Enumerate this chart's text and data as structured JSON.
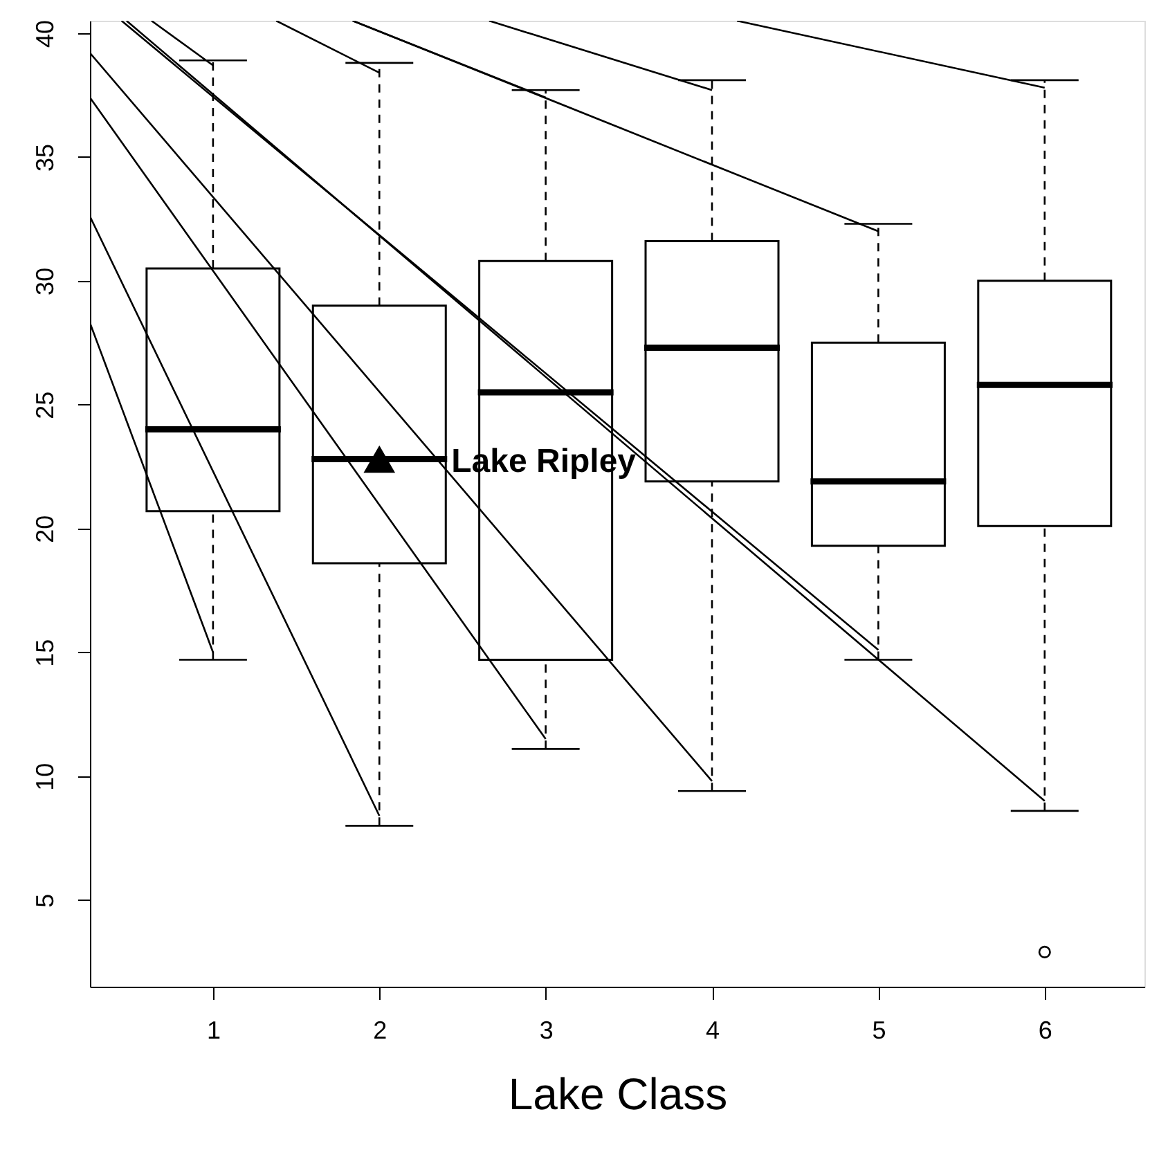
{
  "chart_data": {
    "type": "box",
    "xlabel": "Lake Class",
    "xlim": [
      0.26,
      6.6
    ],
    "xticks": [
      1,
      2,
      3,
      4,
      5,
      6
    ],
    "ylim": [
      1.5,
      40.5
    ],
    "yticks": [
      5,
      10,
      15,
      20,
      25,
      30,
      35,
      40
    ],
    "grid": false,
    "annotations": [
      {
        "text": "Lake Ripley",
        "x": 2,
        "y": 22.8
      }
    ],
    "series": [
      {
        "color": "#000000",
        "x": [
          1,
          2,
          3,
          4,
          5,
          6
        ],
        "boxes": [
          {
            "low": 14.7,
            "q1": 20.7,
            "median": 24.0,
            "q3": 30.5,
            "high": 38.9
          },
          {
            "low": 8.0,
            "q1": 18.6,
            "median": 22.8,
            "q3": 29.0,
            "high": 38.8
          },
          {
            "low": 11.1,
            "q1": 14.7,
            "median": 25.5,
            "q3": 30.8,
            "high": 37.7
          },
          {
            "low": 9.4,
            "q1": 21.9,
            "median": 27.3,
            "q3": 31.6,
            "high": 38.1
          },
          {
            "low": 14.7,
            "q1": 19.3,
            "median": 21.9,
            "q3": 27.5,
            "high": 32.3
          },
          {
            "low": 8.6,
            "q1": 20.1,
            "median": 25.8,
            "q3": 30.0,
            "high": 38.1,
            "outliers": [
              2.9
            ]
          }
        ]
      },
      {
        "type": "scatter",
        "color": "#000000",
        "marker": "triangle",
        "x": [
          2
        ],
        "values": [
          22.8
        ]
      },
      {
        "type": "line",
        "color": "#000000",
        "x": [
          0.26,
          1
        ],
        "values": [
          28.3,
          15.0
        ]
      },
      {
        "type": "line",
        "color": "#000000",
        "x": [
          0.26,
          2
        ],
        "values": [
          32.6,
          8.4
        ]
      },
      {
        "type": "line",
        "color": "#000000",
        "x": [
          0.26,
          3
        ],
        "values": [
          37.4,
          11.5
        ]
      },
      {
        "type": "line",
        "color": "#000000",
        "x": [
          0.26,
          4
        ],
        "values": [
          39.2,
          9.8
        ]
      },
      {
        "type": "line",
        "color": "#000000",
        "x": [
          0.45,
          5
        ],
        "values": [
          40.5,
          15.1
        ]
      },
      {
        "type": "line",
        "color": "#000000",
        "x": [
          0.48,
          6
        ],
        "values": [
          40.5,
          9.0
        ]
      },
      {
        "type": "line",
        "color": "#000000",
        "x": [
          0.63,
          1
        ],
        "values": [
          40.5,
          38.7
        ]
      },
      {
        "type": "line",
        "color": "#000000",
        "x": [
          1.38,
          2
        ],
        "values": [
          40.5,
          38.4
        ]
      },
      {
        "type": "line",
        "color": "#000000",
        "x": [
          1.84,
          3
        ],
        "values": [
          40.5,
          37.4
        ]
      },
      {
        "type": "line",
        "color": "#000000",
        "x": [
          1.84,
          5
        ],
        "values": [
          40.5,
          32.0
        ]
      },
      {
        "type": "line",
        "color": "#000000",
        "x": [
          2.66,
          4
        ],
        "values": [
          40.5,
          37.7
        ]
      },
      {
        "type": "line",
        "color": "#000000",
        "x": [
          4.15,
          6
        ],
        "values": [
          40.5,
          37.8
        ]
      }
    ]
  }
}
